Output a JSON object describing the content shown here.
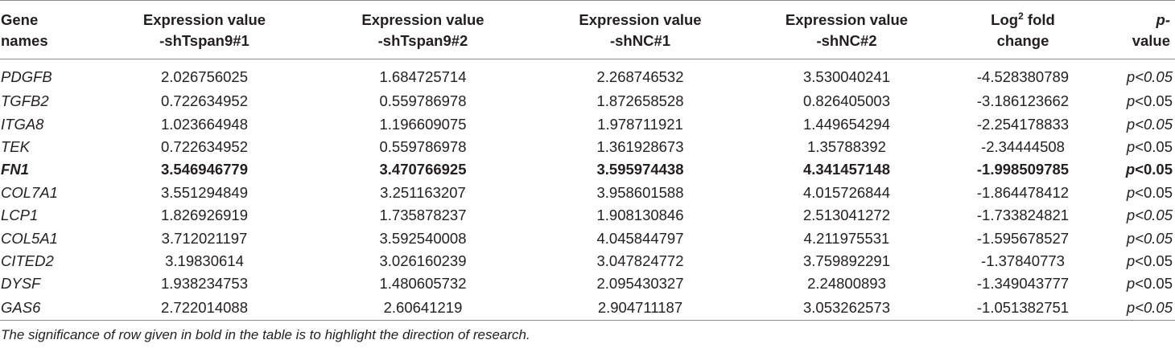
{
  "table": {
    "headers": {
      "gene": [
        "Gene",
        "names"
      ],
      "col1": [
        "Expression value",
        "-shTspan9#1"
      ],
      "col2": [
        "Expression value",
        "-shTspan9#2"
      ],
      "col3": [
        "Expression value",
        "-shNC#1"
      ],
      "col4": [
        "Expression value",
        "-shNC#2"
      ],
      "log_prefix": "Log",
      "log_sup": "2",
      "log_suffix": " fold",
      "log_line2": "change",
      "pval": [
        "p-",
        "value"
      ]
    },
    "rows": [
      {
        "gene": "PDGFB",
        "v1": "2.026756025",
        "v2": "1.684725714",
        "v3": "2.268746532",
        "v4": "3.530040241",
        "fc": "-4.528380789",
        "p_i": "p",
        "p_rest": "<0.05",
        "p_all_italic": true
      },
      {
        "gene": "TGFB2",
        "v1": "0.722634952",
        "v2": "0.559786978",
        "v3": "1.872658528",
        "v4": "0.826405003",
        "fc": "-3.186123662",
        "p_i": "p",
        "p_rest": "<0.05",
        "p_all_italic": false
      },
      {
        "gene": "ITGA8",
        "v1": "1.023664948",
        "v2": "1.196609075",
        "v3": "1.978711921",
        "v4": "1.449654294",
        "fc": "-2.254178833",
        "p_i": "p",
        "p_rest": "<0.05",
        "p_all_italic": true
      },
      {
        "gene": "TEK",
        "v1": "0.722634952",
        "v2": "0.559786978",
        "v3": "1.361928673",
        "v4": "1.35788392",
        "fc": "-2.34444508",
        "p_i": "p",
        "p_rest": "<0.05",
        "p_all_italic": false
      },
      {
        "gene": "FN1",
        "v1": "3.546946779",
        "v2": "3.470766925",
        "v3": "3.595974438",
        "v4": "4.341457148",
        "fc": "-1.998509785",
        "p_i": "p",
        "p_rest": "<0.05",
        "p_all_italic": false
      },
      {
        "gene": "COL7A1",
        "v1": "3.551294849",
        "v2": "3.251163207",
        "v3": "3.958601588",
        "v4": "4.015726844",
        "fc": "-1.864478412",
        "p_i": "p",
        "p_rest": "<0.05",
        "p_all_italic": false
      },
      {
        "gene": "LCP1",
        "v1": "1.826926919",
        "v2": "1.735878237",
        "v3": "1.908130846",
        "v4": "2.513041272",
        "fc": "-1.733824821",
        "p_i": "p",
        "p_rest": "<0.05",
        "p_all_italic": true
      },
      {
        "gene": "COL5A1",
        "v1": "3.712021197",
        "v2": "3.592540008",
        "v3": "4.045844797",
        "v4": "4.211975531",
        "fc": "-1.595678527",
        "p_i": "p",
        "p_rest": "<0.05",
        "p_all_italic": true
      },
      {
        "gene": "CITED2",
        "v1": "3.19830614",
        "v2": "3.026160239",
        "v3": "3.047824772",
        "v4": "3.759892291",
        "fc": "-1.37840773",
        "p_i": "p",
        "p_rest": "<0.05",
        "p_all_italic": false
      },
      {
        "gene": "DYSF",
        "v1": "1.938234753",
        "v2": "1.480605732",
        "v3": "2.095430327",
        "v4": "2.24800893",
        "fc": "-1.349043777",
        "p_i": "p",
        "p_rest": "<0.05",
        "p_all_italic": false
      },
      {
        "gene": "GAS6",
        "v1": "2.722014088",
        "v2": "2.60641219",
        "v3": "2.904711187",
        "v4": "3.053262573",
        "fc": "-1.051382751",
        "p_i": "p",
        "p_rest": "<0.05",
        "p_all_italic": true
      }
    ],
    "bold_row_index": 4,
    "footnote": "The significance of row given in bold in the table is to highlight the direction of research."
  }
}
